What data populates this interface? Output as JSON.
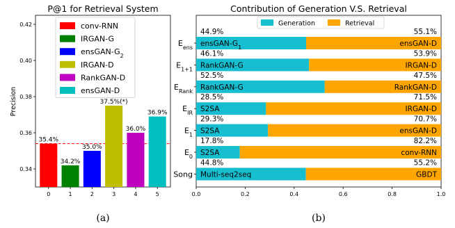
{
  "chart_data": [
    {
      "type": "bar",
      "title": "P@1 for Retrieval System",
      "ylabel": "Precision",
      "xlabel": "",
      "ylim": [
        0.33,
        0.425
      ],
      "yticks": [
        "0.34",
        "0.36",
        "0.38",
        "0.40",
        "0.42"
      ],
      "categories": [
        "0",
        "1",
        "2",
        "3",
        "4",
        "5"
      ],
      "values": [
        0.354,
        0.342,
        0.35,
        0.375,
        0.36,
        0.369
      ],
      "data_labels": [
        "35.4%",
        "34.2%",
        "35.0%",
        "37.5%(*)",
        "36.0%",
        "36.9%"
      ],
      "legend": [
        "conv-RNN",
        "IRGAN-G",
        "ensGAN-G",
        "IRGAN-D",
        "RankGAN-D",
        "ensGAN-D"
      ],
      "legend_subscripts": [
        "",
        "",
        "2",
        "",
        "",
        ""
      ],
      "colors": [
        "#ff0000",
        "#008000",
        "#0000ff",
        "#bfbf00",
        "#bf00bf",
        "#00bfbf"
      ],
      "reference_line": 0.354,
      "reference_line_color": "#ff0000",
      "sublabel": "(a)"
    },
    {
      "type": "bar",
      "orientation": "horizontal-stacked",
      "title": "Contribution of Generation V.S. Retrieval",
      "xlim": [
        0,
        1.0
      ],
      "xticks": [
        "0.0",
        "0.2",
        "0.4",
        "0.6",
        "0.8",
        "1.0"
      ],
      "series": [
        {
          "name": "Generation",
          "color": "#17becf"
        },
        {
          "name": "Retrieval",
          "color": "#ffa500"
        }
      ],
      "rows": [
        {
          "base": "E",
          "sub": "ens",
          "gen": 0.449,
          "gen_pct": "44.9%",
          "ret_pct": "55.1%",
          "gen_model": "ensGAN-G",
          "gen_model_sub": "1",
          "ret_model": "ensGAN-D"
        },
        {
          "base": "E",
          "sub": "1+1",
          "gen": 0.461,
          "gen_pct": "46.1%",
          "ret_pct": "53.9%",
          "gen_model": "RankGAN-G",
          "gen_model_sub": "",
          "ret_model": "IRGAN-D"
        },
        {
          "base": "E",
          "sub": "Rank",
          "gen": 0.525,
          "gen_pct": "52.5%",
          "ret_pct": "47.5%",
          "gen_model": "RankGAN-G",
          "gen_model_sub": "",
          "ret_model": "RankGAN-D"
        },
        {
          "base": "E",
          "sub": "IR",
          "gen": 0.285,
          "gen_pct": "28.5%",
          "ret_pct": "71.5%",
          "gen_model": "S2SA",
          "gen_model_sub": "",
          "ret_model": "IRGAN-D"
        },
        {
          "base": "E",
          "sub": "1",
          "gen": 0.293,
          "gen_pct": "29.3%",
          "ret_pct": "70.7%",
          "gen_model": "S2SA",
          "gen_model_sub": "",
          "ret_model": "ensGAN-D"
        },
        {
          "base": "E",
          "sub": "0",
          "gen": 0.178,
          "gen_pct": "17.8%",
          "ret_pct": "82.2%",
          "gen_model": "S2SA",
          "gen_model_sub": "",
          "ret_model": "conv-RNN"
        },
        {
          "base": "Song",
          "sub": "",
          "gen": 0.448,
          "gen_pct": "44.8%",
          "ret_pct": "55.2%",
          "gen_model": "Multi-seq2seq",
          "gen_model_sub": "",
          "ret_model": "GBDT"
        }
      ],
      "sublabel": "(b)"
    }
  ]
}
